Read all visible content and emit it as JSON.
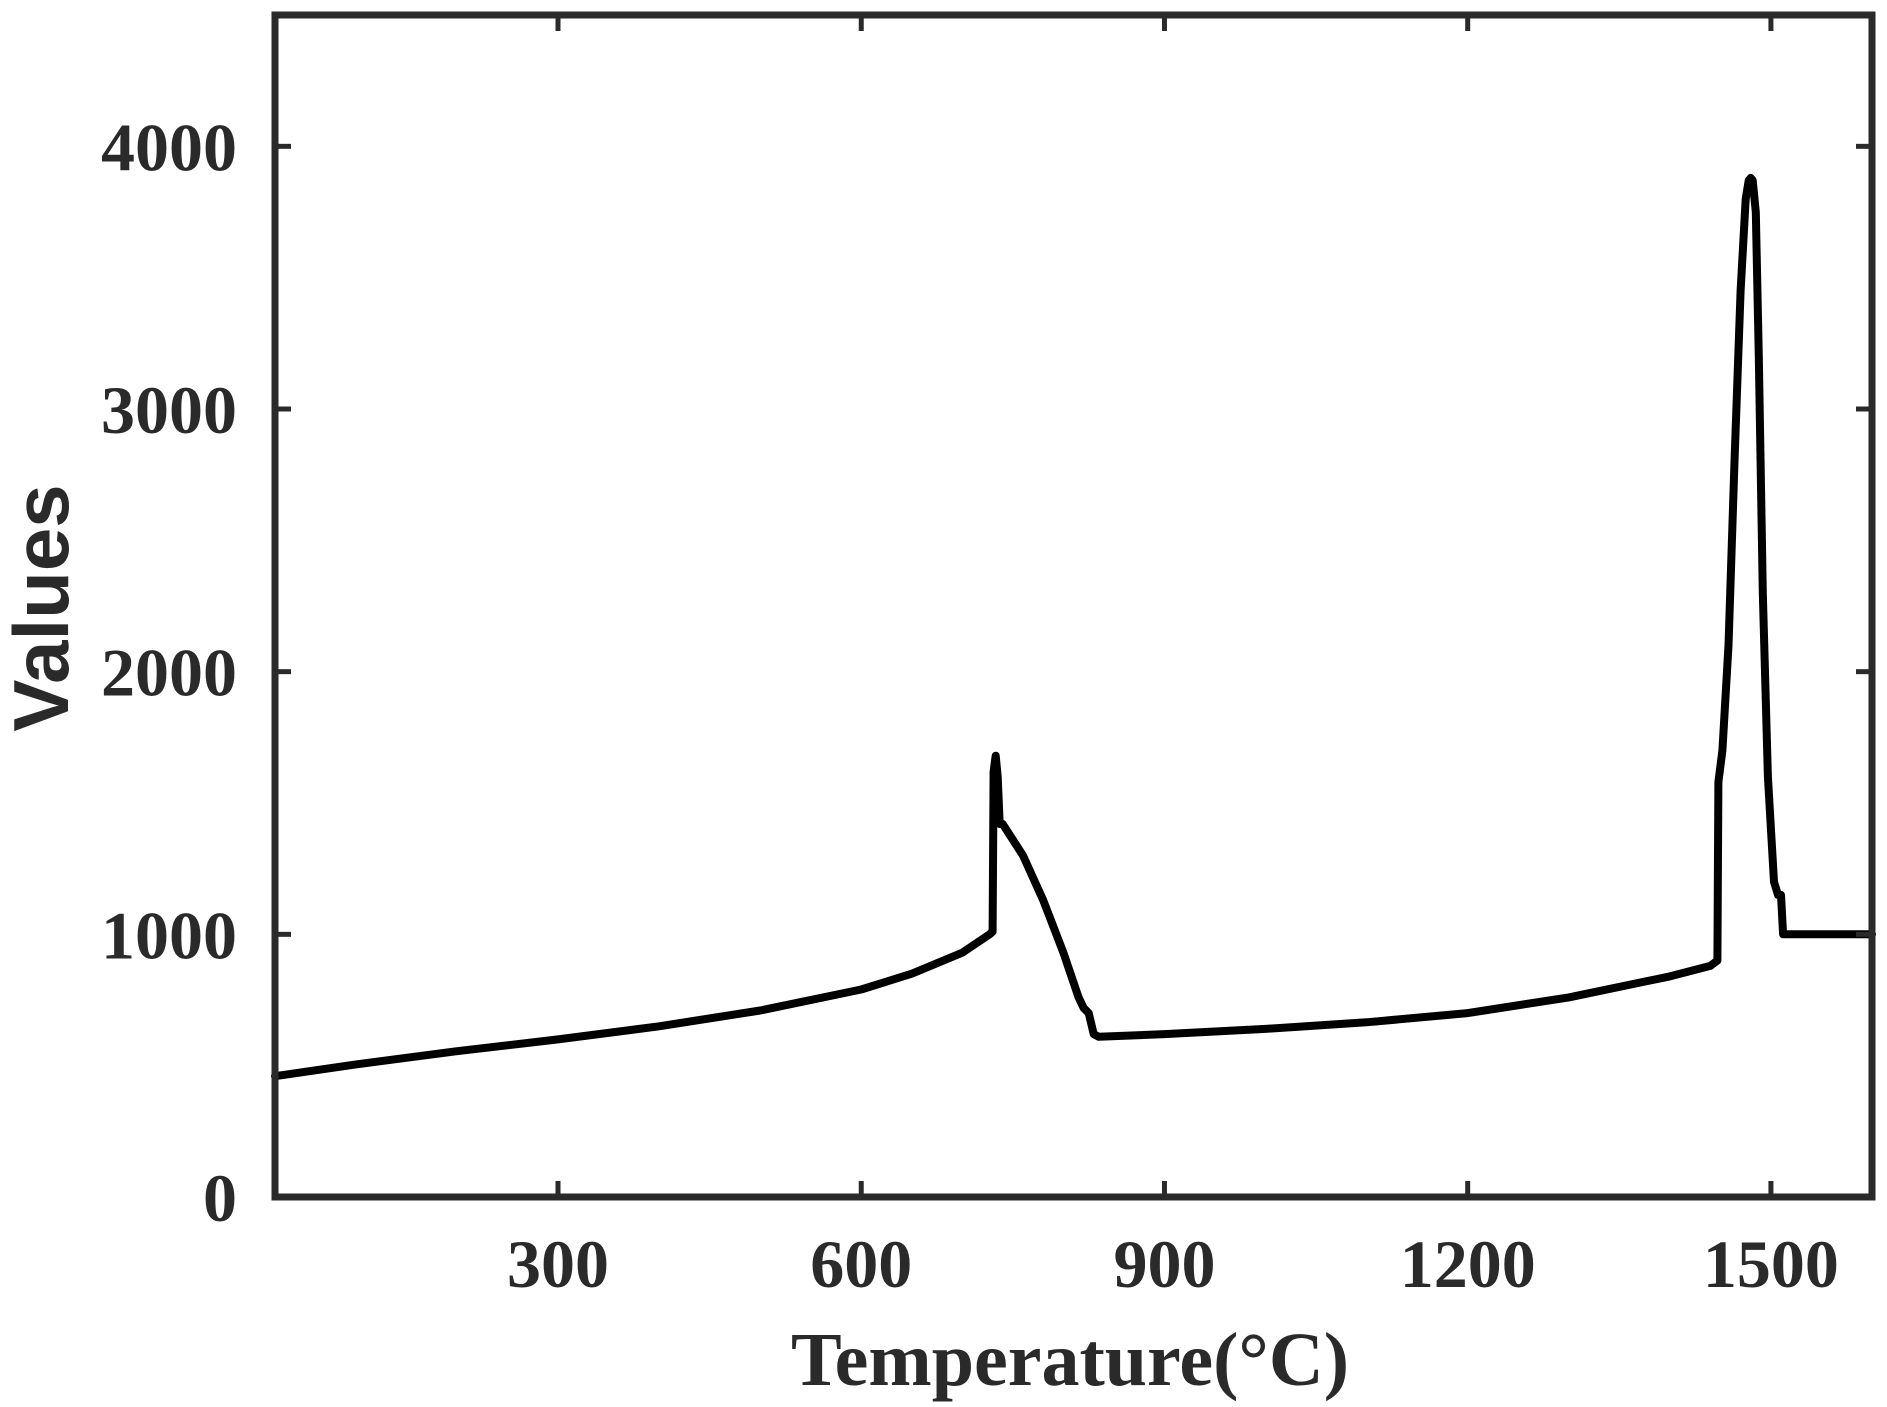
{
  "chart_data": {
    "type": "line",
    "title": "",
    "xlabel": "Temperature(°C)",
    "ylabel": "Values",
    "xlim": [
      20,
      1600
    ],
    "ylim": [
      0,
      4500
    ],
    "xticks": [
      300,
      600,
      900,
      1200,
      1500
    ],
    "yticks": [
      0,
      1000,
      2000,
      3000,
      4000
    ],
    "xtick_labels": [
      "300",
      "600",
      "900",
      "1200",
      "1500"
    ],
    "ytick_labels": [
      "0",
      "1000",
      "2000",
      "3000",
      "4000"
    ],
    "grid": false,
    "colors": {
      "line": "#000000",
      "axes": "#2a2a2a",
      "text": "#2a2a2a"
    },
    "series": [
      {
        "x": [
          20,
          100,
          200,
          300,
          400,
          500,
          600,
          650,
          700,
          727,
          730,
          731,
          733,
          735,
          737,
          740,
          760,
          780,
          800,
          815,
          820,
          825,
          830,
          835,
          900,
          1000,
          1100,
          1200,
          1300,
          1400,
          1440,
          1447,
          1448,
          1452,
          1458,
          1464,
          1470,
          1475,
          1478,
          1480,
          1482,
          1485,
          1488,
          1492,
          1497,
          1503,
          1507,
          1510,
          1512,
          1513,
          1520,
          1560,
          1600
        ],
        "y": [
          460,
          505,
          555,
          600,
          650,
          710,
          790,
          850,
          930,
          1000,
          1010,
          1620,
          1680,
          1600,
          1420,
          1420,
          1300,
          1130,
          930,
          760,
          720,
          700,
          620,
          610,
          620,
          640,
          665,
          700,
          760,
          840,
          880,
          900,
          1580,
          1700,
          2100,
          2800,
          3450,
          3800,
          3870,
          3880,
          3870,
          3750,
          3200,
          2300,
          1600,
          1200,
          1150,
          1150,
          1000,
          1000,
          1000,
          1000,
          1000
        ]
      }
    ]
  }
}
